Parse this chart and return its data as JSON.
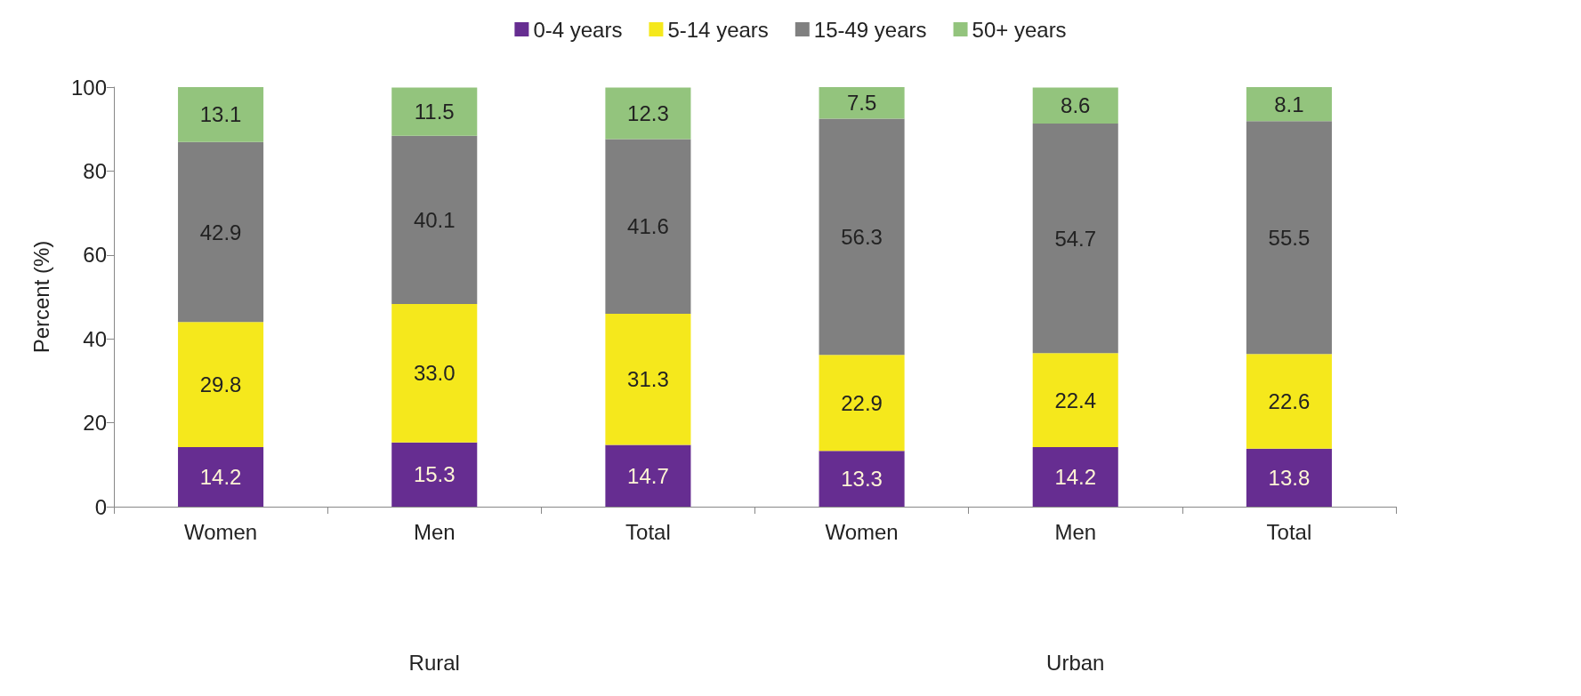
{
  "chart_data": {
    "type": "bar",
    "stacked": true,
    "ylabel": "Percent (%)",
    "categories": [
      "Women",
      "Men",
      "Total",
      "Women",
      "Men",
      "Total"
    ],
    "series": [
      {
        "name": "0-4 years",
        "color": "#662d91",
        "values": [
          14.2,
          15.3,
          14.7,
          13.3,
          14.2,
          13.8
        ],
        "value_labels": [
          "14.2",
          "15.3",
          "14.7",
          "13.3",
          "14.2",
          "13.8"
        ]
      },
      {
        "name": "5-14 years",
        "color": "#f5e81c",
        "values": [
          29.8,
          33.0,
          31.3,
          22.9,
          22.4,
          22.6
        ],
        "value_labels": [
          "29.8",
          "33.0",
          "31.3",
          "22.9",
          "22.4",
          "22.6"
        ]
      },
      {
        "name": "15-49 years",
        "color": "#808080",
        "values": [
          42.9,
          40.1,
          41.6,
          56.3,
          54.7,
          55.5
        ],
        "value_labels": [
          "42.9",
          "40.1",
          "41.6",
          "56.3",
          "54.7",
          "55.5"
        ]
      },
      {
        "name": "50+ years",
        "color": "#93c47d",
        "values": [
          13.1,
          11.5,
          12.3,
          7.5,
          8.6,
          8.1
        ],
        "value_labels": [
          "13.1",
          "11.5",
          "12.3",
          "7.5",
          "8.6",
          "8.1"
        ]
      }
    ],
    "ylim": [
      0,
      100
    ],
    "yticks": [
      0,
      20,
      40,
      60,
      80,
      100
    ],
    "grid": false,
    "legend": "top",
    "annotations": [
      "Rural",
      "Urban"
    ]
  }
}
